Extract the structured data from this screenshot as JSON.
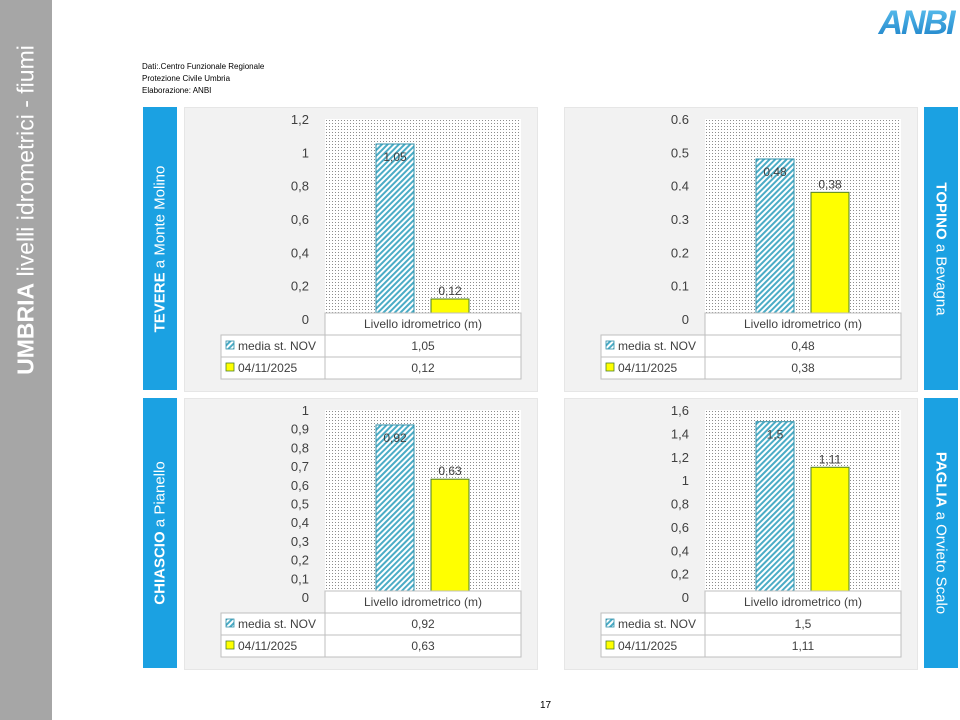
{
  "sidebar": {
    "title_bold": "UMBRIA",
    "title_rest": " livelli idrometrici - fiumi"
  },
  "logo": {
    "text": "ANBI"
  },
  "source": {
    "line1": "Dati:.Centro Funzionale Regionale",
    "line2": "Protezione Civile Umbria",
    "line3": "Elaborazione: ANBI"
  },
  "labels": [
    {
      "bold": "TEVERE",
      "rest": " a Monte Molino"
    },
    {
      "bold": "TOPINO",
      "rest": " a Bevagna"
    },
    {
      "bold": "CHIASCIO",
      "rest": " a Pianello"
    },
    {
      "bold": "PAGLIA",
      "rest": " a Orvieto Scalo"
    }
  ],
  "colors": {
    "series1": "#4bacc6",
    "series2": "#ffff00",
    "accent": "#1ba1e2",
    "sidebar": "#a6a6a6"
  },
  "chart_data": [
    {
      "type": "bar",
      "categories": [
        "Livello idrometrico (m)"
      ],
      "series": [
        {
          "name": "media st. NOV",
          "values": [
            1.05
          ],
          "label": "1,05"
        },
        {
          "name": "04/11/2025",
          "values": [
            0.12
          ],
          "label": "0,12"
        }
      ],
      "ylim": [
        0,
        1.2
      ],
      "yticks": [
        "0",
        "0,2",
        "0,4",
        "0,6",
        "0,8",
        "1",
        "1,2"
      ],
      "grid": false,
      "legend": "data-table"
    },
    {
      "type": "bar",
      "categories": [
        "Livello idrometrico (m)"
      ],
      "series": [
        {
          "name": "media st. NOV",
          "values": [
            0.48
          ],
          "label": "0,48"
        },
        {
          "name": "04/11/2025",
          "values": [
            0.38
          ],
          "label": "0,38"
        }
      ],
      "ylim": [
        0,
        0.6
      ],
      "yticks": [
        "0",
        "0.1",
        "0.2",
        "0.3",
        "0.4",
        "0.5",
        "0.6"
      ],
      "grid": false,
      "legend": "data-table"
    },
    {
      "type": "bar",
      "categories": [
        "Livello idrometrico (m)"
      ],
      "series": [
        {
          "name": "media st. NOV",
          "values": [
            0.92
          ],
          "label": "0,92"
        },
        {
          "name": "04/11/2025",
          "values": [
            0.63
          ],
          "label": "0,63"
        }
      ],
      "ylim": [
        0,
        1
      ],
      "yticks": [
        "0",
        "0,1",
        "0,2",
        "0,3",
        "0,4",
        "0,5",
        "0,6",
        "0,7",
        "0,8",
        "0,9",
        "1"
      ],
      "grid": false,
      "legend": "data-table"
    },
    {
      "type": "bar",
      "categories": [
        "Livello idrometrico (m)"
      ],
      "series": [
        {
          "name": "media st. NOV",
          "values": [
            1.5
          ],
          "label": "1,5"
        },
        {
          "name": "04/11/2025",
          "values": [
            1.11
          ],
          "label": "1,11"
        }
      ],
      "ylim": [
        0,
        1.6
      ],
      "yticks": [
        "0",
        "0,2",
        "0,4",
        "0,6",
        "0,8",
        "1",
        "1,2",
        "1,4",
        "1,6"
      ],
      "grid": false,
      "legend": "data-table"
    }
  ],
  "page_number": "17"
}
